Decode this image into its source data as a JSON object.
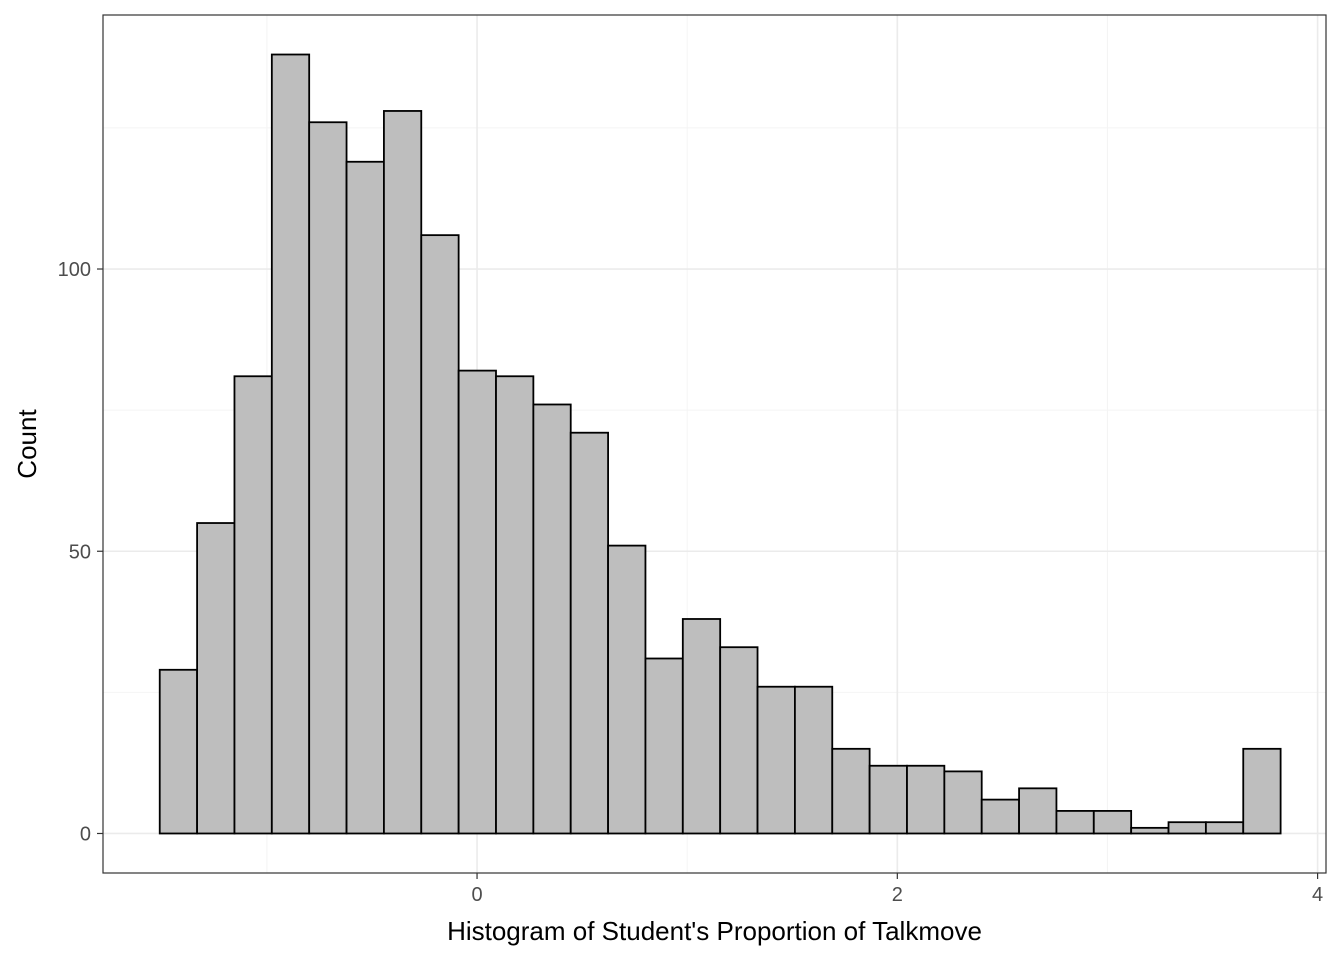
{
  "chart_data": {
    "type": "bar",
    "title": "",
    "xlabel": "Histogram of Student's Proportion of Talkmove",
    "ylabel": "Count",
    "bin_width": 0.1778,
    "bins": [
      {
        "x0": -1.51,
        "x1": -1.3322,
        "count": 29
      },
      {
        "x0": -1.3322,
        "x1": -1.1544,
        "count": 55
      },
      {
        "x0": -1.1544,
        "x1": -0.9766,
        "count": 81
      },
      {
        "x0": -0.9766,
        "x1": -0.7988,
        "count": 138
      },
      {
        "x0": -0.7988,
        "x1": -0.621,
        "count": 126
      },
      {
        "x0": -0.621,
        "x1": -0.4432,
        "count": 119
      },
      {
        "x0": -0.4432,
        "x1": -0.2654,
        "count": 128
      },
      {
        "x0": -0.2654,
        "x1": -0.0876,
        "count": 106
      },
      {
        "x0": -0.0876,
        "x1": 0.0902,
        "count": 82
      },
      {
        "x0": 0.0902,
        "x1": 0.268,
        "count": 81
      },
      {
        "x0": 0.268,
        "x1": 0.4458,
        "count": 76
      },
      {
        "x0": 0.4458,
        "x1": 0.6236,
        "count": 71
      },
      {
        "x0": 0.6236,
        "x1": 0.8014,
        "count": 51
      },
      {
        "x0": 0.8014,
        "x1": 0.9792,
        "count": 31
      },
      {
        "x0": 0.9792,
        "x1": 1.157,
        "count": 38
      },
      {
        "x0": 1.157,
        "x1": 1.3348,
        "count": 33
      },
      {
        "x0": 1.3348,
        "x1": 1.5126,
        "count": 26
      },
      {
        "x0": 1.5126,
        "x1": 1.6904,
        "count": 26
      },
      {
        "x0": 1.6904,
        "x1": 1.8682,
        "count": 15
      },
      {
        "x0": 1.8682,
        "x1": 2.046,
        "count": 12
      },
      {
        "x0": 2.046,
        "x1": 2.2238,
        "count": 12
      },
      {
        "x0": 2.2238,
        "x1": 2.4016,
        "count": 11
      },
      {
        "x0": 2.4016,
        "x1": 2.5794,
        "count": 6
      },
      {
        "x0": 2.5794,
        "x1": 2.7572,
        "count": 8
      },
      {
        "x0": 2.7572,
        "x1": 2.935,
        "count": 4
      },
      {
        "x0": 2.935,
        "x1": 3.1128,
        "count": 4
      },
      {
        "x0": 3.1128,
        "x1": 3.2906,
        "count": 1
      },
      {
        "x0": 3.2906,
        "x1": 3.4684,
        "count": 2
      },
      {
        "x0": 3.4684,
        "x1": 3.6462,
        "count": 2
      },
      {
        "x0": 3.6462,
        "x1": 3.824,
        "count": 15
      }
    ],
    "xlim": [
      -1.78,
      4.04
    ],
    "ylim": [
      -7,
      145
    ],
    "x_ticks": [
      0,
      2,
      4
    ],
    "x_tick_labels": [
      "0",
      "2",
      "4"
    ],
    "y_ticks": [
      0,
      50,
      100
    ],
    "y_tick_labels": [
      "0",
      "50",
      "100"
    ],
    "x_minor_ticks": [
      -1,
      1,
      3
    ],
    "y_minor_ticks": [
      25,
      75,
      125
    ],
    "grid": true,
    "legend": "none",
    "colors": {
      "bar_fill": "#bebebe",
      "bar_stroke": "#000000",
      "grid_major": "#ebebeb",
      "grid_minor": "#f4f4f4",
      "panel_border": "#333333",
      "tick_label": "#4d4d4d"
    }
  }
}
